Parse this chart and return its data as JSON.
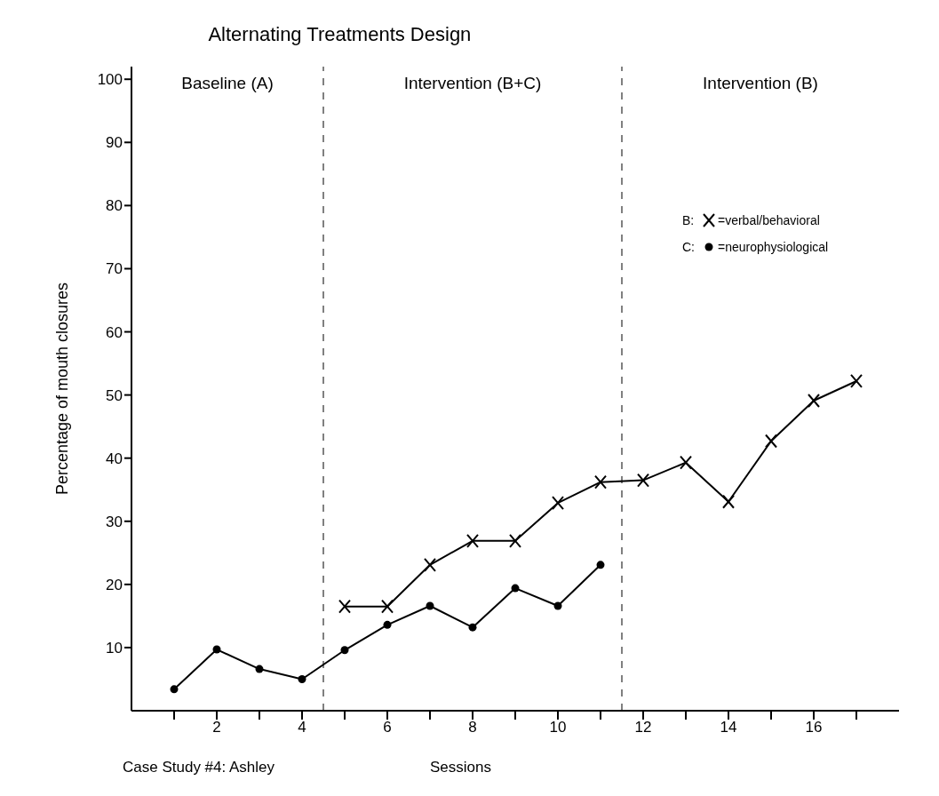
{
  "chart_data": {
    "type": "line",
    "title": "Alternating Treatments Design",
    "xlabel": "Sessions",
    "ylabel": "Percentage of mouth closures",
    "x": [
      1,
      2,
      3,
      4,
      5,
      6,
      7,
      8,
      9,
      10,
      11,
      12,
      13,
      14,
      15,
      16,
      17
    ],
    "series": [
      {
        "name": "=verbal/behavioral",
        "color": "#000000",
        "marker": "cross",
        "values": [
          null,
          null,
          null,
          null,
          16.5,
          16.5,
          23.1,
          26.9,
          26.9,
          32.9,
          36.2,
          36.5,
          39.3,
          33.1,
          42.7,
          49.1,
          52.2
        ]
      },
      {
        "name": "=neurophysiological",
        "color": "#000000",
        "marker": "circle",
        "values": [
          3.4,
          9.7,
          6.6,
          5.0,
          9.6,
          13.6,
          16.6,
          13.2,
          19.4,
          16.6,
          23.1,
          null,
          null,
          null,
          null,
          null,
          null
        ]
      }
    ],
    "xlim": [
      0,
      18
    ],
    "xticks": [
      {
        "value": 1,
        "label": null
      },
      2,
      {
        "value": 3,
        "label": null
      },
      4,
      {
        "value": 5,
        "label": null
      },
      6,
      {
        "value": 7,
        "label": null
      },
      8,
      {
        "value": 9,
        "label": null
      },
      10,
      {
        "value": 11,
        "label": null
      },
      12,
      {
        "value": 13,
        "label": null
      },
      14,
      {
        "value": 15,
        "label": null
      },
      16,
      {
        "value": 17,
        "label": null
      }
    ],
    "ylim": [
      0,
      102
    ],
    "yticks": [
      10,
      20,
      30,
      40,
      50,
      60,
      70,
      80,
      90,
      100
    ],
    "ref_lines": [
      {
        "axis": "x",
        "value": 4.5,
        "line_style": "dashed"
      },
      {
        "axis": "x",
        "value": 11.5,
        "line_style": "dashed"
      }
    ],
    "annotations": [
      "Baseline (A)",
      "Intervention (B+C)",
      "Intervention (B)",
      "Case Study #4: Ashley",
      "B:",
      "C:"
    ],
    "legend": "top right",
    "grid": false,
    "line_style": "solid"
  }
}
